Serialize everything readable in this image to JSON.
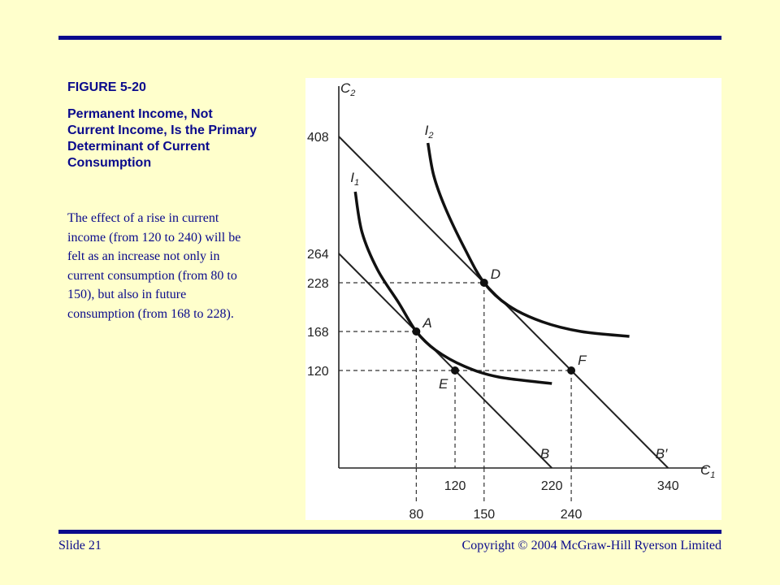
{
  "figure": {
    "label": "FIGURE 5-20",
    "title": "Permanent Income, Not Current Income, Is the Primary Determinant of Current Consumption",
    "body": "The effect of a rise in current income (from 120 to 240) will be felt as an increase not only in current consumption (from 80 to 150), but also in future consumption (from 168 to 228)."
  },
  "footer": {
    "slide": "Slide 21",
    "copyright": "Copyright © 2004 McGraw-Hill Ryerson Limited"
  },
  "chart_data": {
    "type": "line",
    "xlabel": "C1",
    "ylabel": "C2",
    "xlim": [
      0,
      375
    ],
    "ylim": [
      0,
      460
    ],
    "x_ticks_upper": [
      120,
      220,
      340
    ],
    "x_ticks_lower": [
      80,
      150,
      240
    ],
    "y_ticks": [
      408,
      264,
      228,
      168,
      120
    ],
    "budget_lines": [
      {
        "name": "B",
        "points": [
          [
            0,
            264
          ],
          [
            220,
            0
          ]
        ]
      },
      {
        "name": "B′",
        "points": [
          [
            0,
            408
          ],
          [
            340,
            0
          ]
        ]
      }
    ],
    "indifference_curves": [
      {
        "name": "I1",
        "points": [
          [
            17,
            340
          ],
          [
            24,
            290
          ],
          [
            40,
            244
          ],
          [
            62,
            203
          ],
          [
            80,
            168
          ],
          [
            100,
            145
          ],
          [
            130,
            125
          ],
          [
            165,
            112
          ],
          [
            220,
            104
          ]
        ]
      },
      {
        "name": "I2",
        "points": [
          [
            92,
            400
          ],
          [
            98,
            360
          ],
          [
            110,
            320
          ],
          [
            130,
            270
          ],
          [
            150,
            228
          ],
          [
            175,
            200
          ],
          [
            210,
            180
          ],
          [
            250,
            168
          ],
          [
            300,
            162
          ]
        ]
      }
    ],
    "points": [
      {
        "name": "A",
        "x": 80,
        "y": 168
      },
      {
        "name": "D",
        "x": 150,
        "y": 228
      },
      {
        "name": "E",
        "x": 120,
        "y": 120
      },
      {
        "name": "F",
        "x": 240,
        "y": 120
      }
    ],
    "guides": [
      {
        "from": [
          0,
          168
        ],
        "to": [
          80,
          168
        ]
      },
      {
        "from": [
          80,
          168
        ],
        "to": [
          80,
          0
        ]
      },
      {
        "from": [
          0,
          228
        ],
        "to": [
          150,
          228
        ]
      },
      {
        "from": [
          150,
          228
        ],
        "to": [
          150,
          0
        ]
      },
      {
        "from": [
          0,
          120
        ],
        "to": [
          240,
          120
        ]
      },
      {
        "from": [
          120,
          120
        ],
        "to": [
          120,
          0
        ]
      },
      {
        "from": [
          240,
          120
        ],
        "to": [
          240,
          0
        ]
      }
    ]
  }
}
